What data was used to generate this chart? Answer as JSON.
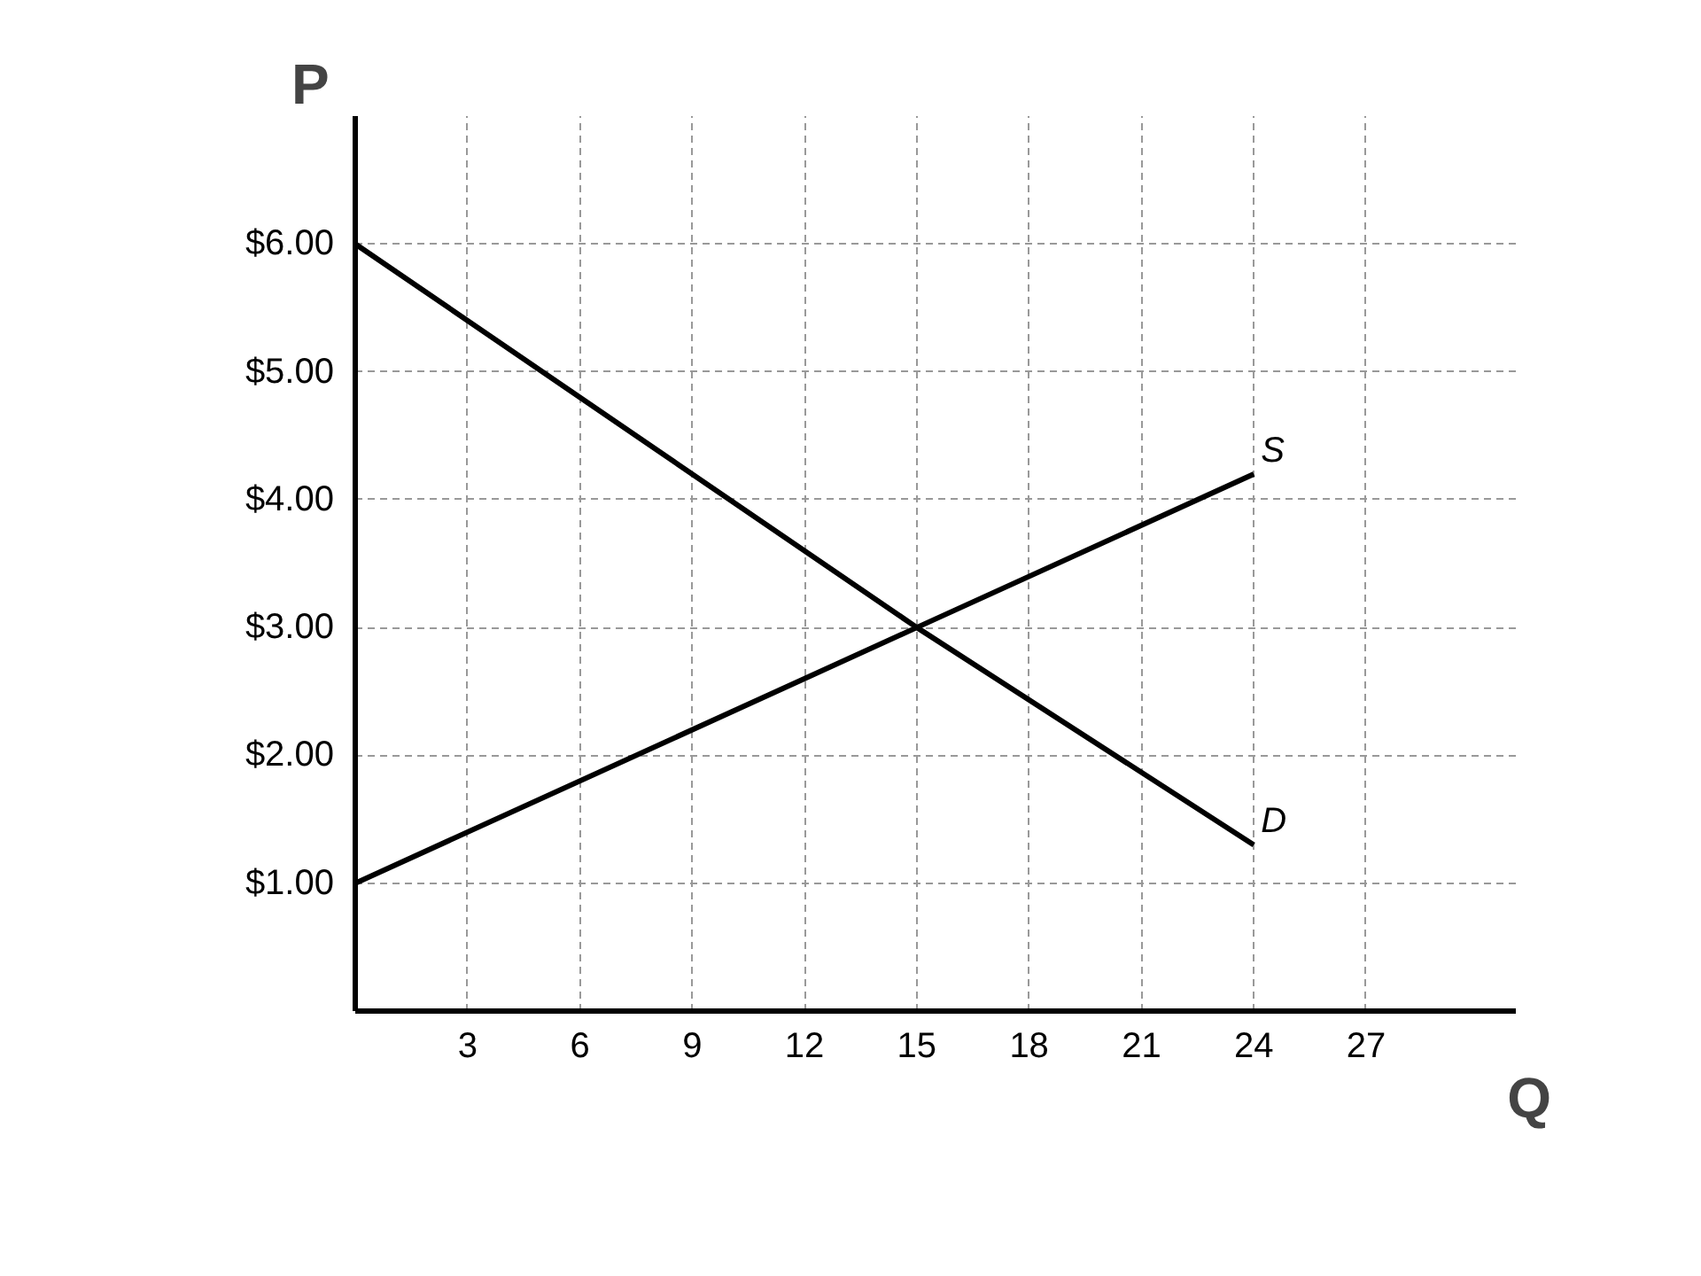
{
  "chart_data": {
    "type": "line",
    "xlabel": "Q",
    "ylabel": "P",
    "series": [
      {
        "name": "S",
        "color": "#000000",
        "x": [
          0,
          15,
          24
        ],
        "values": [
          1,
          3,
          4.2
        ]
      },
      {
        "name": "D",
        "color": "#000000",
        "x": [
          0,
          15,
          24
        ],
        "values": [
          6,
          3,
          1.3
        ]
      }
    ],
    "xlim": [
      0,
      31
    ],
    "ylim": [
      0,
      7
    ],
    "xticks": [
      3,
      6,
      9,
      12,
      15,
      18,
      21,
      24,
      27
    ],
    "yticks": [
      {
        "value": 1,
        "label": "$1.00"
      },
      {
        "value": 2,
        "label": "$2.00"
      },
      {
        "value": 3,
        "label": "$3.00"
      },
      {
        "value": 4,
        "label": "$4.00"
      },
      {
        "value": 5,
        "label": "$5.00"
      },
      {
        "value": 6,
        "label": "$6.00"
      }
    ],
    "grid": true,
    "legend": false,
    "marker": "none",
    "line_style": "solid"
  }
}
